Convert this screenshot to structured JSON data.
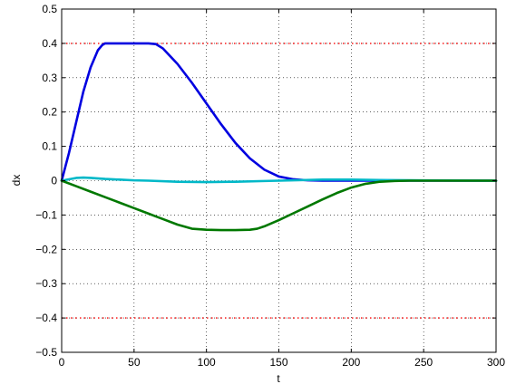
{
  "chart_data": {
    "type": "line",
    "xlabel": "t",
    "ylabel": "dx",
    "xlim": [
      0,
      300
    ],
    "ylim": [
      -0.5,
      0.5
    ],
    "xticks": [
      0,
      50,
      100,
      150,
      200,
      250,
      300
    ],
    "yticks": [
      -0.5,
      -0.4,
      -0.3,
      -0.2,
      -0.1,
      0,
      0.1,
      0.2,
      0.3,
      0.4,
      0.5
    ],
    "ytick_labels": [
      "−0.5",
      "−0.4",
      "−0.3",
      "−0.2",
      "−0.1",
      "0",
      "0.1",
      "0.2",
      "0.3",
      "0.4",
      "0.5"
    ],
    "grid": true,
    "limit_lines": [
      {
        "y": 0.4,
        "color": "#ff0000",
        "style": "dotted"
      },
      {
        "y": -0.4,
        "color": "#ff0000",
        "style": "dotted"
      }
    ],
    "series": [
      {
        "color": "#0000e0",
        "x": [
          0,
          5,
          10,
          15,
          20,
          25,
          28,
          30,
          40,
          50,
          60,
          65,
          70,
          80,
          90,
          100,
          110,
          120,
          130,
          140,
          150,
          160,
          170,
          180,
          200,
          250,
          300
        ],
        "y": [
          0,
          0.08,
          0.17,
          0.26,
          0.33,
          0.38,
          0.395,
          0.4,
          0.4,
          0.4,
          0.4,
          0.398,
          0.385,
          0.34,
          0.285,
          0.225,
          0.165,
          0.11,
          0.065,
          0.032,
          0.012,
          0.004,
          0.001,
          0,
          0,
          0,
          0
        ]
      },
      {
        "color": "#00b8c8",
        "x": [
          0,
          5,
          10,
          15,
          20,
          30,
          40,
          50,
          60,
          80,
          100,
          120,
          140,
          160,
          180,
          200,
          220,
          250,
          300
        ],
        "y": [
          0,
          0.004,
          0.008,
          0.009,
          0.008,
          0.005,
          0.003,
          0.001,
          0,
          -0.003,
          -0.004,
          -0.003,
          -0.001,
          0.001,
          0.003,
          0.003,
          0.002,
          0.001,
          0
        ]
      },
      {
        "color": "#007800",
        "x": [
          0,
          10,
          20,
          30,
          40,
          50,
          60,
          65,
          70,
          80,
          90,
          100,
          110,
          120,
          130,
          135,
          140,
          150,
          160,
          170,
          180,
          190,
          200,
          210,
          220,
          230,
          240,
          250,
          300
        ],
        "y": [
          0,
          -0.016,
          -0.032,
          -0.048,
          -0.064,
          -0.08,
          -0.096,
          -0.104,
          -0.112,
          -0.128,
          -0.14,
          -0.143,
          -0.144,
          -0.144,
          -0.143,
          -0.14,
          -0.133,
          -0.115,
          -0.095,
          -0.075,
          -0.055,
          -0.036,
          -0.02,
          -0.009,
          -0.003,
          -0.001,
          0,
          0,
          0
        ]
      }
    ]
  }
}
